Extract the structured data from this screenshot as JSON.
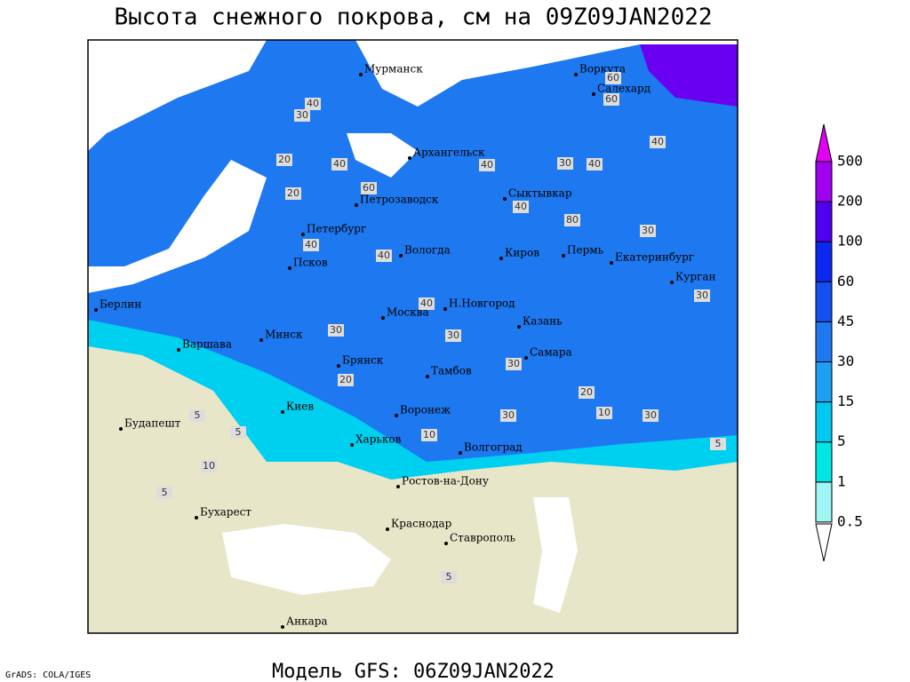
{
  "header": {
    "title": "Высота снежного покрова, см на 09Z09JAN2022"
  },
  "footer": {
    "model": "Модель GFS: 06Z09JAN2022",
    "credit": "GrADS: COLA/IGES"
  },
  "legend": {
    "levels": [
      {
        "value": 0.5,
        "color": "#a0f5f5"
      },
      {
        "value": 1,
        "color": "#00e6e6"
      },
      {
        "value": 5,
        "color": "#00c8f0"
      },
      {
        "value": 15,
        "color": "#1ea0f0"
      },
      {
        "value": 30,
        "color": "#1e78f0"
      },
      {
        "value": 45,
        "color": "#1450f0"
      },
      {
        "value": 60,
        "color": "#0a28f0"
      },
      {
        "value": 100,
        "color": "#5000f0"
      },
      {
        "value": 200,
        "color": "#a000f0"
      },
      {
        "value": 500,
        "color": "#e000f0"
      }
    ]
  },
  "cities": [
    "Мурманск",
    "Воркута",
    "Салехард",
    "Архангельск",
    "Петрозаводск",
    "Сыктывкар",
    "Петербург",
    "Вологда",
    "Киров",
    "Пермь",
    "Екатеринбург",
    "Курган",
    "Псков",
    "Берлин",
    "Москва",
    "Н.Новгород",
    "Казань",
    "Варшава",
    "Минск",
    "Брянск",
    "Тамбов",
    "Самара",
    "Киев",
    "Воронеж",
    "Будапешт",
    "Харьков",
    "Волгоград",
    "Ростов-на-Дону",
    "Бухарест",
    "Краснодар",
    "Ставрополь",
    "Анкара"
  ],
  "contour_labels": [
    40,
    30,
    20,
    60,
    40,
    40,
    60,
    40,
    30,
    20,
    40,
    30,
    40,
    30,
    40,
    40,
    30,
    20,
    30,
    30,
    20,
    10,
    5,
    5,
    10,
    5,
    10,
    30,
    5,
    5,
    30,
    60,
    40,
    80
  ]
}
